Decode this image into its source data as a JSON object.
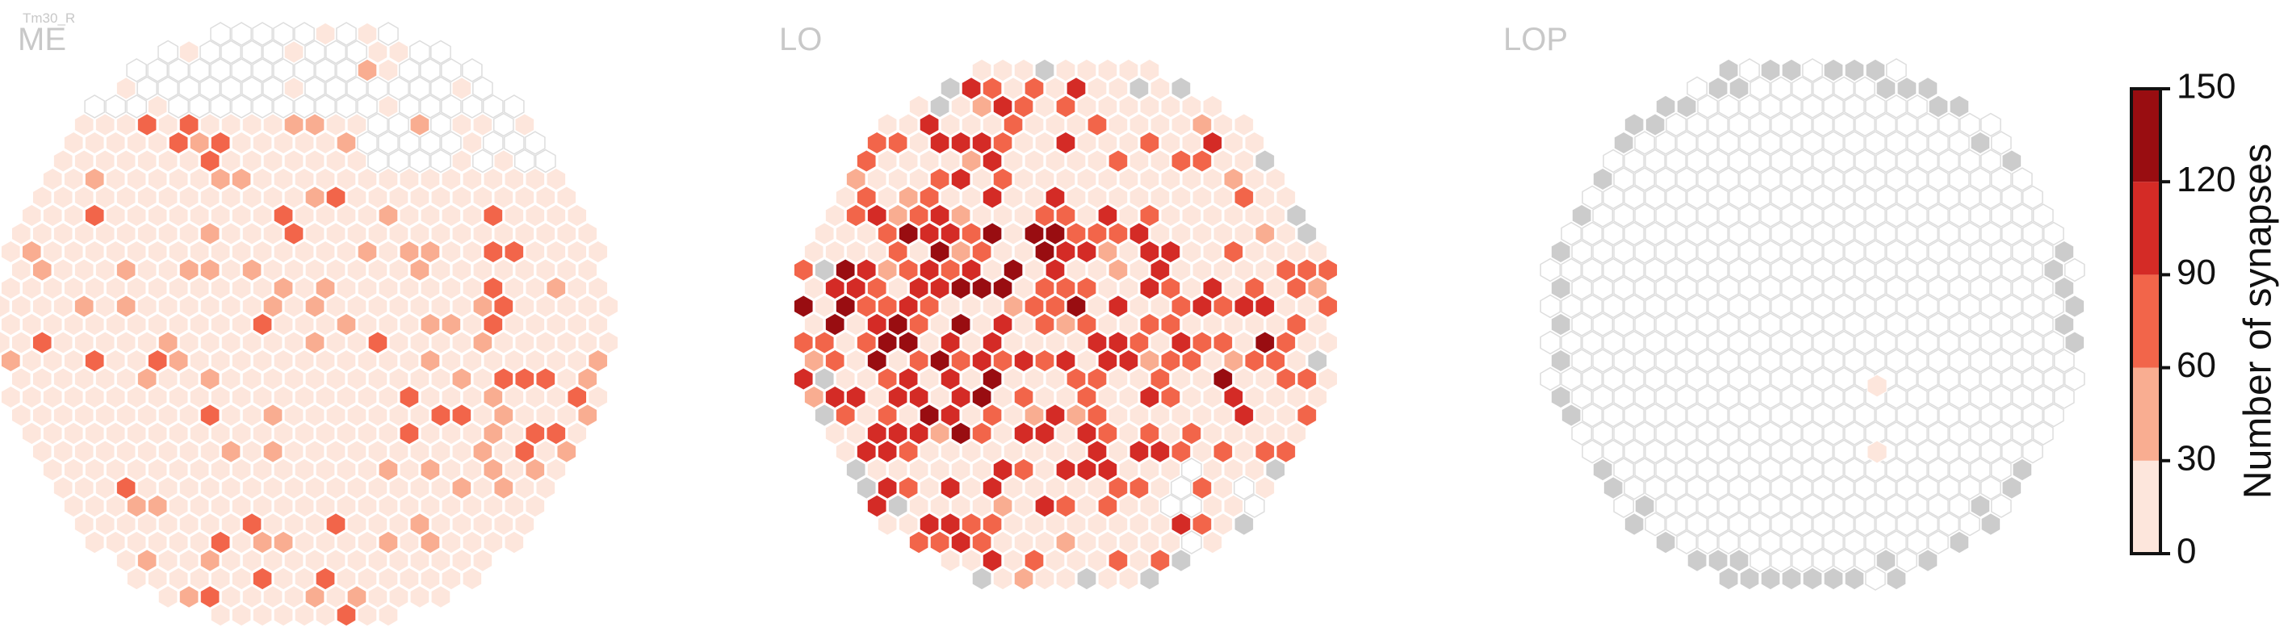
{
  "cell_type_label": "Tm30_R",
  "chart_data": {
    "type": "heatmap",
    "layout": "hexagonal-columns",
    "panels": [
      {
        "title": "ME",
        "region": "ME",
        "hex_radius": 15,
        "center": [
          377,
          402
        ],
        "extent": 17,
        "mean_value": 18,
        "hot_fraction": 0.14,
        "hot_range": [
          35,
          75
        ],
        "max_value": 100,
        "empty_columns": "upper-right rim",
        "no_data_columns": "none"
      },
      {
        "title": "LO",
        "region": "LO",
        "hex_radius": 15,
        "center": [
          1320,
          402
        ],
        "extent": 15,
        "mean_value": 45,
        "hot_fraction": 0.45,
        "hot_range": [
          50,
          120
        ],
        "max_value": 140,
        "empty_columns": "lower-right rim",
        "no_data_columns": "scattered rim"
      },
      {
        "title": "LOP",
        "region": "LOP",
        "hex_radius": 15,
        "center": [
          2245,
          402
        ],
        "extent": 15,
        "mean_value": 0,
        "hot_fraction": 0,
        "hot_range": [
          0,
          0
        ],
        "max_value": 15,
        "empty_columns": "all",
        "no_data_columns": "rim ring"
      }
    ],
    "colorbar": {
      "label": "Number of synapses",
      "ticks": [
        0,
        30,
        60,
        90,
        120,
        150
      ],
      "bins": [
        {
          "min": 0,
          "max": 30,
          "color": "#fde6dc"
        },
        {
          "min": 30,
          "max": 60,
          "color": "#f9ad91"
        },
        {
          "min": 60,
          "max": 90,
          "color": "#f2654a"
        },
        {
          "min": 90,
          "max": 120,
          "color": "#d42b26"
        },
        {
          "min": 120,
          "max": 150,
          "color": "#990d11"
        }
      ],
      "no_data_color": "#cccccc",
      "empty_stroke_color": "#dddddd"
    }
  }
}
